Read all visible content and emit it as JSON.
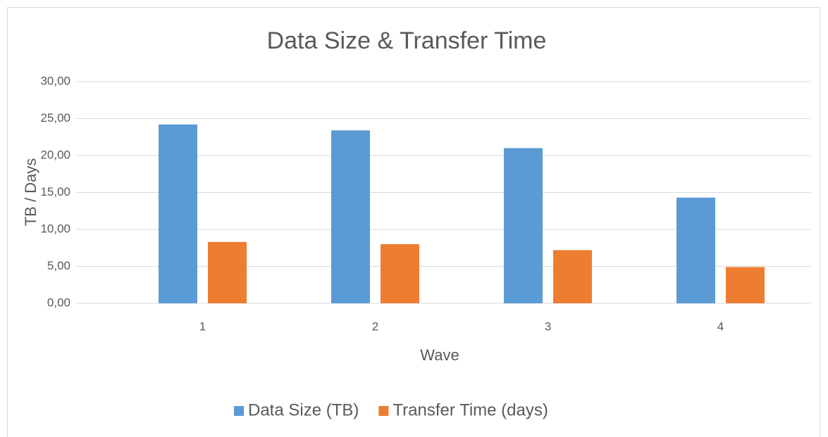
{
  "chart_data": {
    "type": "bar",
    "title": "Data Size & Transfer Time",
    "x_label": "Wave",
    "y_label": "TB / Days",
    "categories": [
      "1",
      "2",
      "3",
      "4"
    ],
    "series": [
      {
        "name": "Data Size (TB)",
        "color": "#5b9bd5",
        "values": [
          24.2,
          23.4,
          21.0,
          14.3
        ]
      },
      {
        "name": "Transfer Time (days)",
        "color": "#ed7d31",
        "values": [
          8.3,
          8.0,
          7.2,
          4.9
        ]
      }
    ],
    "ylim": [
      0,
      30
    ],
    "yticks": [
      {
        "value": 0,
        "label": "0,00"
      },
      {
        "value": 5,
        "label": "5,00"
      },
      {
        "value": 10,
        "label": "10,00"
      },
      {
        "value": 15,
        "label": "15,00"
      },
      {
        "value": 20,
        "label": "20,00"
      },
      {
        "value": 25,
        "label": "25,00"
      },
      {
        "value": 30,
        "label": "30,00"
      }
    ],
    "grid": true,
    "legend": "bottom"
  }
}
